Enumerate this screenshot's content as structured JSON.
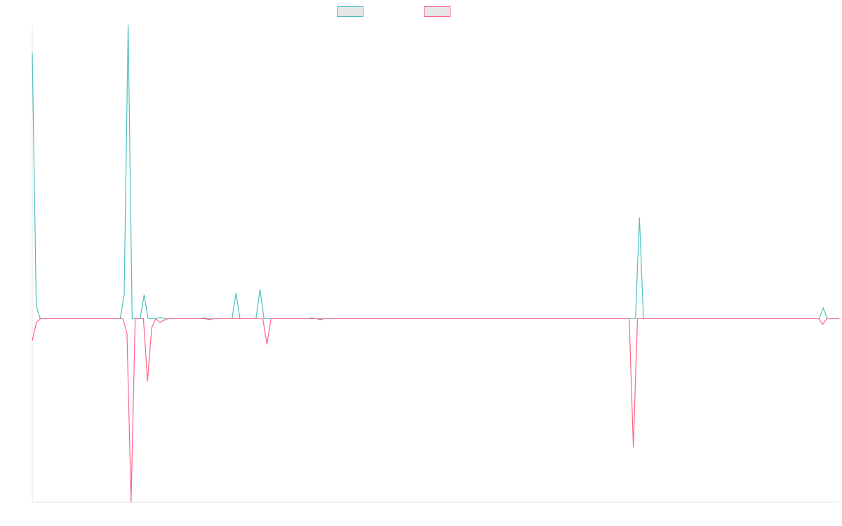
{
  "chart_data": {
    "type": "line",
    "title": "",
    "xlabel": "",
    "ylabel": "",
    "grid": false,
    "legend_position": "top-center",
    "ylim": [
      -100,
      160
    ],
    "series": [
      {
        "color": "#4bc0c0",
        "fill": "#e6e6e6",
        "values": [
          145,
          7,
          0,
          0,
          0,
          0,
          0,
          0,
          0,
          0,
          0,
          0,
          0,
          0,
          0,
          0,
          0,
          0,
          0,
          0,
          0,
          0,
          0,
          13,
          160,
          0,
          0,
          0,
          13,
          0,
          0,
          0,
          0.8,
          0,
          0,
          0,
          0,
          0,
          0,
          0,
          0,
          0,
          0,
          0.5,
          0,
          0,
          0,
          0,
          0,
          0,
          0,
          14,
          0,
          0,
          0,
          0,
          0,
          16,
          0,
          0,
          0,
          0,
          0,
          0,
          0,
          0,
          0,
          0,
          0,
          0,
          0.5,
          0,
          0,
          0,
          0,
          0,
          0,
          0,
          0,
          0,
          0,
          0,
          0,
          0,
          0,
          0,
          0,
          0,
          0,
          0,
          0,
          0,
          0,
          0,
          0,
          0,
          0,
          0,
          0,
          0,
          0,
          0,
          0,
          0,
          0,
          0,
          0,
          0,
          0,
          0,
          0,
          0,
          0,
          0,
          0,
          0,
          0,
          0,
          0,
          0,
          0,
          0,
          0,
          0,
          0,
          0,
          0,
          0,
          0,
          0,
          0,
          0,
          0,
          0,
          0,
          0,
          0,
          0,
          0,
          0,
          0,
          0,
          0,
          0,
          0,
          0,
          0,
          0,
          0,
          0,
          0,
          0,
          55,
          0,
          0,
          0,
          0,
          0,
          0,
          0,
          0,
          0,
          0,
          0,
          0,
          0,
          0,
          0,
          0,
          0,
          0,
          0,
          0,
          0,
          0,
          0,
          0,
          0,
          0,
          0,
          0,
          0,
          0,
          0,
          0,
          0,
          0,
          0,
          0,
          0,
          0,
          0,
          0,
          0,
          0,
          0,
          0,
          0,
          6,
          0,
          0,
          0,
          0
        ]
      },
      {
        "color": "#ff6384",
        "fill": "#e6e6e6",
        "values": [
          -12,
          -2,
          0,
          0,
          0,
          0,
          0,
          0,
          0,
          0,
          0,
          0,
          0,
          0,
          0,
          0,
          0,
          0,
          0,
          0,
          0,
          0,
          0,
          -8,
          -100,
          0,
          0,
          0,
          -34,
          -5,
          0,
          -2,
          -0.8,
          0,
          0,
          0,
          0,
          0,
          0,
          0,
          0,
          0,
          0,
          -0.5,
          0,
          0,
          0,
          0,
          0,
          0,
          0,
          0,
          0,
          0,
          0,
          0,
          0,
          -14,
          0,
          0,
          0,
          0,
          0,
          0,
          0,
          0,
          0,
          0,
          0,
          0,
          -0.5,
          0,
          0,
          0,
          0,
          0,
          0,
          0,
          0,
          0,
          0,
          0,
          0,
          0,
          0,
          0,
          0,
          0,
          0,
          0,
          0,
          0,
          0,
          0,
          0,
          0,
          0,
          0,
          0,
          0,
          0,
          0,
          0,
          0,
          0,
          0,
          0,
          0,
          0,
          0,
          0,
          0,
          0,
          0,
          0,
          0,
          0,
          0,
          0,
          0,
          0,
          0,
          0,
          0,
          0,
          0,
          0,
          0,
          0,
          0,
          0,
          0,
          0,
          0,
          0,
          0,
          0,
          0,
          0,
          0,
          0,
          0,
          0,
          0,
          0,
          0,
          -70,
          0,
          0,
          0,
          0,
          0,
          0,
          0,
          0,
          0,
          0,
          0,
          0,
          0,
          0,
          0,
          0,
          0,
          0,
          0,
          0,
          0,
          0,
          0,
          0,
          0,
          0,
          0,
          0,
          0,
          0,
          0,
          0,
          0,
          0,
          0,
          0,
          0,
          0,
          0,
          0,
          0,
          0,
          0,
          0,
          0,
          -3,
          0,
          0,
          0,
          0
        ]
      }
    ]
  }
}
